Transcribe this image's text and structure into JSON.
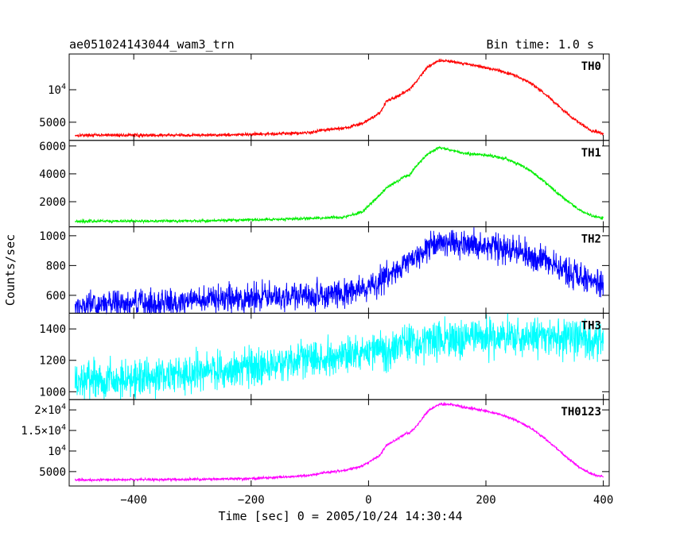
{
  "chart_data": {
    "type": "line",
    "title": "ae051024143044_wam3_trn",
    "subtitle": "Bin time: 1.0 s",
    "xlabel": "Time [sec] 0 = 2005/10/24 14:30:44",
    "ylabel": "Counts/sec",
    "xlim": [
      -510,
      410
    ],
    "x_ticks": [
      -400,
      -200,
      0,
      200,
      400
    ],
    "x_tick_labels": [
      "−400",
      "−200",
      "0",
      "200",
      "400"
    ],
    "grid": false,
    "panels": [
      {
        "name": "TH0",
        "color": "#ff0000",
        "ylim": [
          2200,
          15500
        ],
        "y_ticks": [
          5000,
          10000
        ],
        "y_tick_labels": [
          "5000",
          "10^4"
        ],
        "noise": 120,
        "x": [
          -500,
          -300,
          -200,
          -100,
          -80,
          -40,
          -10,
          20,
          30,
          50,
          60,
          70,
          80,
          100,
          120,
          140,
          160,
          180,
          200,
          220,
          240,
          260,
          280,
          300,
          320,
          340,
          360,
          380,
          400
        ],
        "y": [
          3000,
          3000,
          3100,
          3400,
          3800,
          4100,
          4800,
          6500,
          8200,
          9000,
          9600,
          10000,
          11100,
          13500,
          14500,
          14400,
          14000,
          13800,
          13400,
          13000,
          12500,
          11800,
          10800,
          9400,
          7800,
          6200,
          4800,
          3700,
          3200
        ]
      },
      {
        "name": "TH1",
        "color": "#00ee00",
        "ylim": [
          200,
          6400
        ],
        "y_ticks": [
          2000,
          4000,
          6000
        ],
        "y_tick_labels": [
          "2000",
          "4000",
          "6000"
        ],
        "noise": 50,
        "x": [
          -500,
          -300,
          -200,
          -100,
          -40,
          -10,
          20,
          30,
          50,
          60,
          70,
          80,
          100,
          120,
          140,
          160,
          180,
          200,
          220,
          240,
          260,
          280,
          300,
          320,
          340,
          360,
          380,
          400
        ],
        "y": [
          600,
          620,
          700,
          800,
          900,
          1300,
          2500,
          3000,
          3500,
          3800,
          3900,
          4500,
          5400,
          5900,
          5700,
          5500,
          5400,
          5350,
          5200,
          5000,
          4600,
          4100,
          3400,
          2700,
          2000,
          1400,
          1000,
          800
        ]
      },
      {
        "name": "TH2",
        "color": "#0000ff",
        "ylim": [
          480,
          1060
        ],
        "y_ticks": [
          600,
          800,
          1000
        ],
        "y_tick_labels": [
          "600",
          "800",
          "1000"
        ],
        "noise": 45,
        "x": [
          -500,
          -400,
          -300,
          -200,
          -100,
          -40,
          0,
          20,
          50,
          80,
          100,
          120,
          150,
          200,
          250,
          300,
          350,
          400
        ],
        "y": [
          530,
          545,
          565,
          585,
          600,
          615,
          650,
          700,
          780,
          850,
          930,
          960,
          950,
          940,
          900,
          830,
          740,
          670
        ]
      },
      {
        "name": "TH3",
        "color": "#00ffff",
        "ylim": [
          950,
          1500
        ],
        "y_ticks": [
          1000,
          1200,
          1400
        ],
        "y_tick_labels": [
          "1000",
          "1200",
          "1400"
        ],
        "noise": 60,
        "x": [
          -500,
          -400,
          -300,
          -200,
          -100,
          0,
          50,
          100,
          150,
          200,
          250,
          300,
          350,
          400
        ],
        "y": [
          1060,
          1090,
          1120,
          1160,
          1210,
          1260,
          1290,
          1320,
          1340,
          1350,
          1350,
          1350,
          1340,
          1320
        ]
      },
      {
        "name": "TH0123",
        "color": "#ff00ff",
        "ylim": [
          1500,
          22500
        ],
        "y_ticks": [
          5000,
          10000,
          15000,
          20000
        ],
        "y_tick_labels": [
          "5000",
          "10^4",
          "1.5×10^4",
          "2×10^4"
        ],
        "noise": 150,
        "x": [
          -500,
          -300,
          -200,
          -100,
          -80,
          -40,
          -10,
          20,
          30,
          50,
          60,
          70,
          80,
          100,
          120,
          140,
          160,
          180,
          200,
          220,
          240,
          260,
          280,
          300,
          320,
          340,
          360,
          380,
          400
        ],
        "y": [
          3000,
          3100,
          3300,
          4000,
          4700,
          5300,
          6400,
          9000,
          11400,
          13000,
          14000,
          14500,
          15700,
          19500,
          21400,
          21300,
          20700,
          20300,
          19700,
          19000,
          18200,
          16900,
          15200,
          13100,
          10700,
          8200,
          6000,
          4400,
          3700
        ]
      }
    ]
  }
}
